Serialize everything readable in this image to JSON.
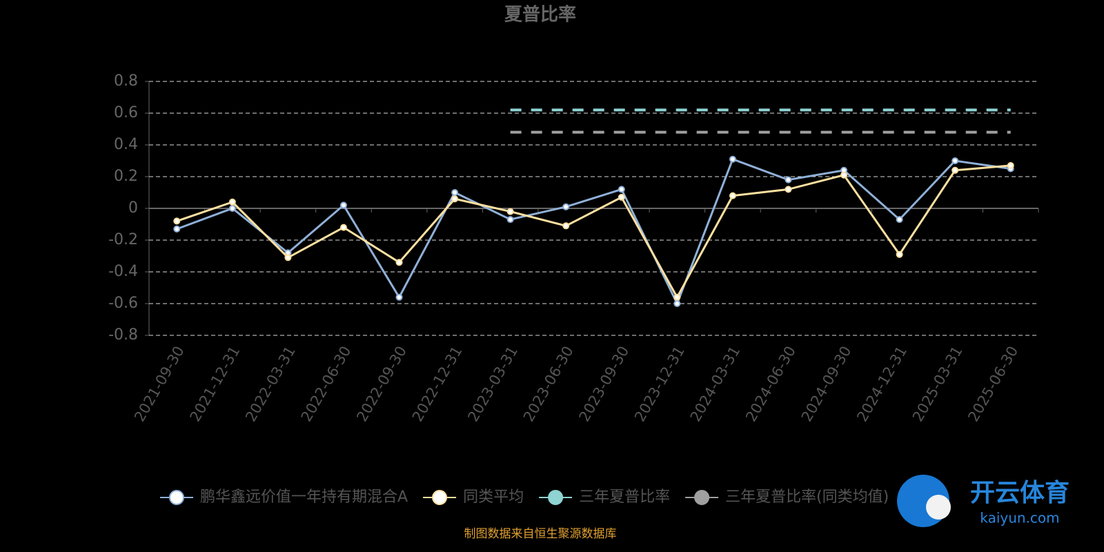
{
  "chart_data": {
    "type": "line",
    "title": "夏普比率",
    "categories": [
      "2021-09-30",
      "2021-12-31",
      "2022-03-31",
      "2022-06-30",
      "2022-09-30",
      "2022-12-31",
      "2023-03-31",
      "2023-06-30",
      "2023-09-30",
      "2023-12-31",
      "2024-03-31",
      "2024-06-30",
      "2024-09-30",
      "2024-12-31",
      "2025-03-31",
      "2025-06-30"
    ],
    "series": [
      {
        "name": "鹏华鑫远价值一年持有期混合A",
        "color": "#8fb0d8",
        "values": [
          -0.13,
          0.0,
          -0.28,
          0.02,
          -0.56,
          0.1,
          -0.07,
          0.01,
          0.12,
          -0.6,
          0.31,
          0.18,
          0.24,
          -0.07,
          0.3,
          0.25
        ]
      },
      {
        "name": "同类平均",
        "color": "#ffe0a0",
        "values": [
          -0.08,
          0.04,
          -0.31,
          -0.12,
          -0.34,
          0.06,
          -0.02,
          -0.11,
          0.07,
          -0.56,
          0.08,
          0.12,
          0.21,
          -0.29,
          0.24,
          0.27
        ]
      },
      {
        "name": "三年夏普比率",
        "color": "#8fd3d3",
        "dashed": true,
        "values": [
          null,
          null,
          null,
          null,
          null,
          null,
          0.62,
          0.62,
          0.62,
          0.62,
          0.62,
          0.62,
          0.62,
          0.62,
          0.62,
          0.62
        ]
      },
      {
        "name": "三年夏普比率(同类均值)",
        "color": "#a0a0a0",
        "dashed": true,
        "values": [
          null,
          null,
          null,
          null,
          null,
          null,
          0.48,
          0.48,
          0.48,
          0.48,
          0.48,
          0.48,
          0.48,
          0.48,
          0.48,
          0.48
        ]
      }
    ],
    "ylim": [
      -0.8,
      0.8
    ],
    "yticks": [
      -0.8,
      -0.6,
      -0.4,
      -0.2,
      0,
      0.2,
      0.4,
      0.6,
      0.8
    ],
    "grid": true,
    "legend": "bottom",
    "source": "制图数据来自恒生聚源数据库",
    "watermark": {
      "name": "开云体育",
      "url": "kaiyun.com"
    }
  }
}
